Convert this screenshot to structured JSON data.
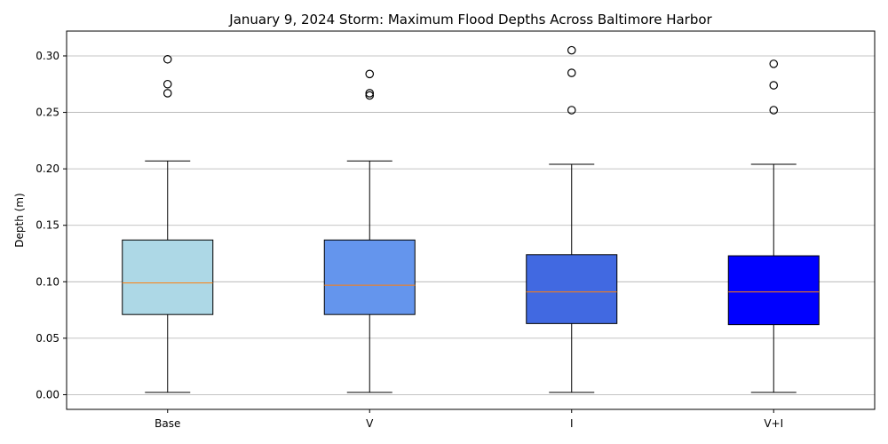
{
  "chart_data": {
    "type": "box",
    "title": "January 9, 2024 Storm: Maximum Flood Depths Across Baltimore Harbor",
    "xlabel": "",
    "ylabel": "Depth (m)",
    "ylim": [
      -0.013,
      0.322
    ],
    "yticks": [
      0.0,
      0.05,
      0.1,
      0.15,
      0.2,
      0.25,
      0.3
    ],
    "ytick_labels": [
      "0.00",
      "0.05",
      "0.10",
      "0.15",
      "0.20",
      "0.25",
      "0.30"
    ],
    "grid": "y",
    "categories": [
      "Base",
      "V",
      "I",
      "V+I"
    ],
    "series": [
      {
        "category": "Base",
        "color": "#add8e6",
        "whisker_low": 0.002,
        "q1": 0.071,
        "median": 0.099,
        "q3": 0.137,
        "whisker_high": 0.207,
        "outliers": [
          0.267,
          0.275,
          0.297
        ]
      },
      {
        "category": "V",
        "color": "#6495ed",
        "whisker_low": 0.002,
        "q1": 0.071,
        "median": 0.097,
        "q3": 0.137,
        "whisker_high": 0.207,
        "outliers": [
          0.265,
          0.267,
          0.284
        ]
      },
      {
        "category": "I",
        "color": "#4169e1",
        "whisker_low": 0.002,
        "q1": 0.063,
        "median": 0.091,
        "q3": 0.124,
        "whisker_high": 0.204,
        "outliers": [
          0.252,
          0.285,
          0.305
        ]
      },
      {
        "category": "V+I",
        "color": "#0000ff",
        "whisker_low": 0.002,
        "q1": 0.062,
        "median": 0.091,
        "q3": 0.123,
        "whisker_high": 0.204,
        "outliers": [
          0.252,
          0.274,
          0.293
        ]
      }
    ],
    "median_color": "#ff7f0e"
  }
}
